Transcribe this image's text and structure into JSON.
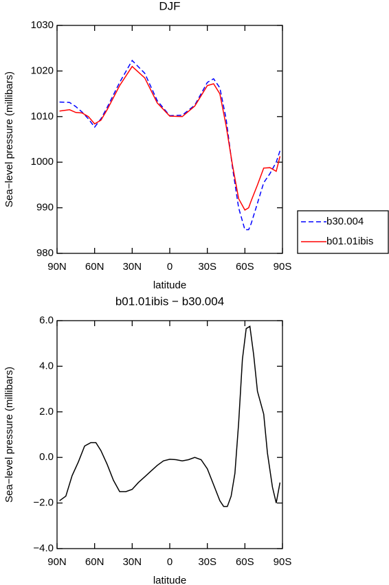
{
  "chart_data": [
    {
      "type": "line",
      "title": "DJF",
      "xlabel": "latitude",
      "ylabel": "Sea−level pressure (millibars)",
      "x": [
        88,
        80,
        75,
        70,
        65,
        60,
        55,
        50,
        40,
        30,
        20,
        10,
        0,
        -10,
        -20,
        -30,
        -35,
        -40,
        -45,
        -50,
        -55,
        -60,
        -63,
        -65,
        -70,
        -75,
        -80,
        -85,
        -88
      ],
      "series": [
        {
          "name": "b30.004",
          "color": "#0000ff",
          "line_style": "dashed",
          "values": [
            1013.2,
            1013.1,
            1012.2,
            1011,
            1009.5,
            1007.7,
            1009.5,
            1012,
            1017.5,
            1022.3,
            1019.5,
            1013.5,
            1010.2,
            1010.3,
            1012.5,
            1017.5,
            1018.3,
            1016.3,
            1009.5,
            999,
            990,
            985.2,
            985.2,
            986.5,
            991,
            995.5,
            997.5,
            1000,
            1002.5
          ]
        },
        {
          "name": "b01.01ibis",
          "color": "#ff0000",
          "line_style": "solid",
          "values": [
            1011.2,
            1011.5,
            1010.9,
            1010.8,
            1010,
            1008.4,
            1009.2,
            1011.5,
            1016.8,
            1021,
            1018.5,
            1013,
            1010.1,
            1010,
            1012.3,
            1016.8,
            1017.2,
            1015,
            1008,
            999.5,
            992,
            989.5,
            990,
            991.5,
            995,
            998.7,
            998.8,
            998,
            1001.3
          ]
        }
      ],
      "xlim": [
        90,
        -90
      ],
      "xticks": [
        {
          "value": 90,
          "label": "90N"
        },
        {
          "value": 60,
          "label": "60N"
        },
        {
          "value": 30,
          "label": "30N"
        },
        0,
        {
          "value": -30,
          "label": "30S"
        },
        {
          "value": -60,
          "label": "60S"
        },
        {
          "value": -90,
          "label": "90S"
        }
      ],
      "ylim": [
        980,
        1030
      ],
      "yticks": [
        980,
        990,
        1000,
        1010,
        1020,
        1030
      ],
      "legend": "right"
    },
    {
      "type": "line",
      "title": "b01.01ibis − b30.004",
      "xlabel": "latitude",
      "ylabel": "Sea−level pressure (millibars)",
      "x": [
        88,
        83,
        78,
        73,
        68,
        63,
        59,
        55,
        50,
        45,
        40,
        35,
        30,
        25,
        20,
        15,
        10,
        5,
        0,
        -5,
        -10,
        -15,
        -20,
        -25,
        -30,
        -35,
        -40,
        -43,
        -46,
        -49,
        -52,
        -55,
        -58,
        -61,
        -64,
        -67,
        -70,
        -75,
        -78,
        -82,
        -85,
        -88
      ],
      "color": "#000000",
      "line_style": "solid",
      "values": [
        -1.9,
        -1.7,
        -0.8,
        -0.2,
        0.5,
        0.65,
        0.65,
        0.3,
        -0.3,
        -1.0,
        -1.5,
        -1.5,
        -1.4,
        -1.1,
        -0.85,
        -0.6,
        -0.35,
        -0.15,
        -0.08,
        -0.1,
        -0.15,
        -0.1,
        0,
        -0.1,
        -0.5,
        -1.2,
        -1.9,
        -2.15,
        -2.15,
        -1.7,
        -0.7,
        1.5,
        4.3,
        5.65,
        5.75,
        4.5,
        2.9,
        1.9,
        0.2,
        -1.3,
        -2.0,
        -1.1
      ],
      "xlim": [
        90,
        -90
      ],
      "xticks": [
        {
          "value": 90,
          "label": "90N"
        },
        {
          "value": 60,
          "label": "60N"
        },
        {
          "value": 30,
          "label": "30N"
        },
        0,
        {
          "value": -30,
          "label": "30S"
        },
        {
          "value": -60,
          "label": "60S"
        },
        {
          "value": -90,
          "label": "90S"
        }
      ],
      "ylim": [
        -4,
        6
      ],
      "yticks": [
        {
          "value": -4,
          "label": "−4.0"
        },
        {
          "value": -2,
          "label": "−2.0"
        },
        {
          "value": 0,
          "label": "0.0"
        },
        {
          "value": 2,
          "label": "2.0"
        },
        {
          "value": 4,
          "label": "4.0"
        },
        {
          "value": 6,
          "label": "6.0"
        }
      ]
    }
  ]
}
